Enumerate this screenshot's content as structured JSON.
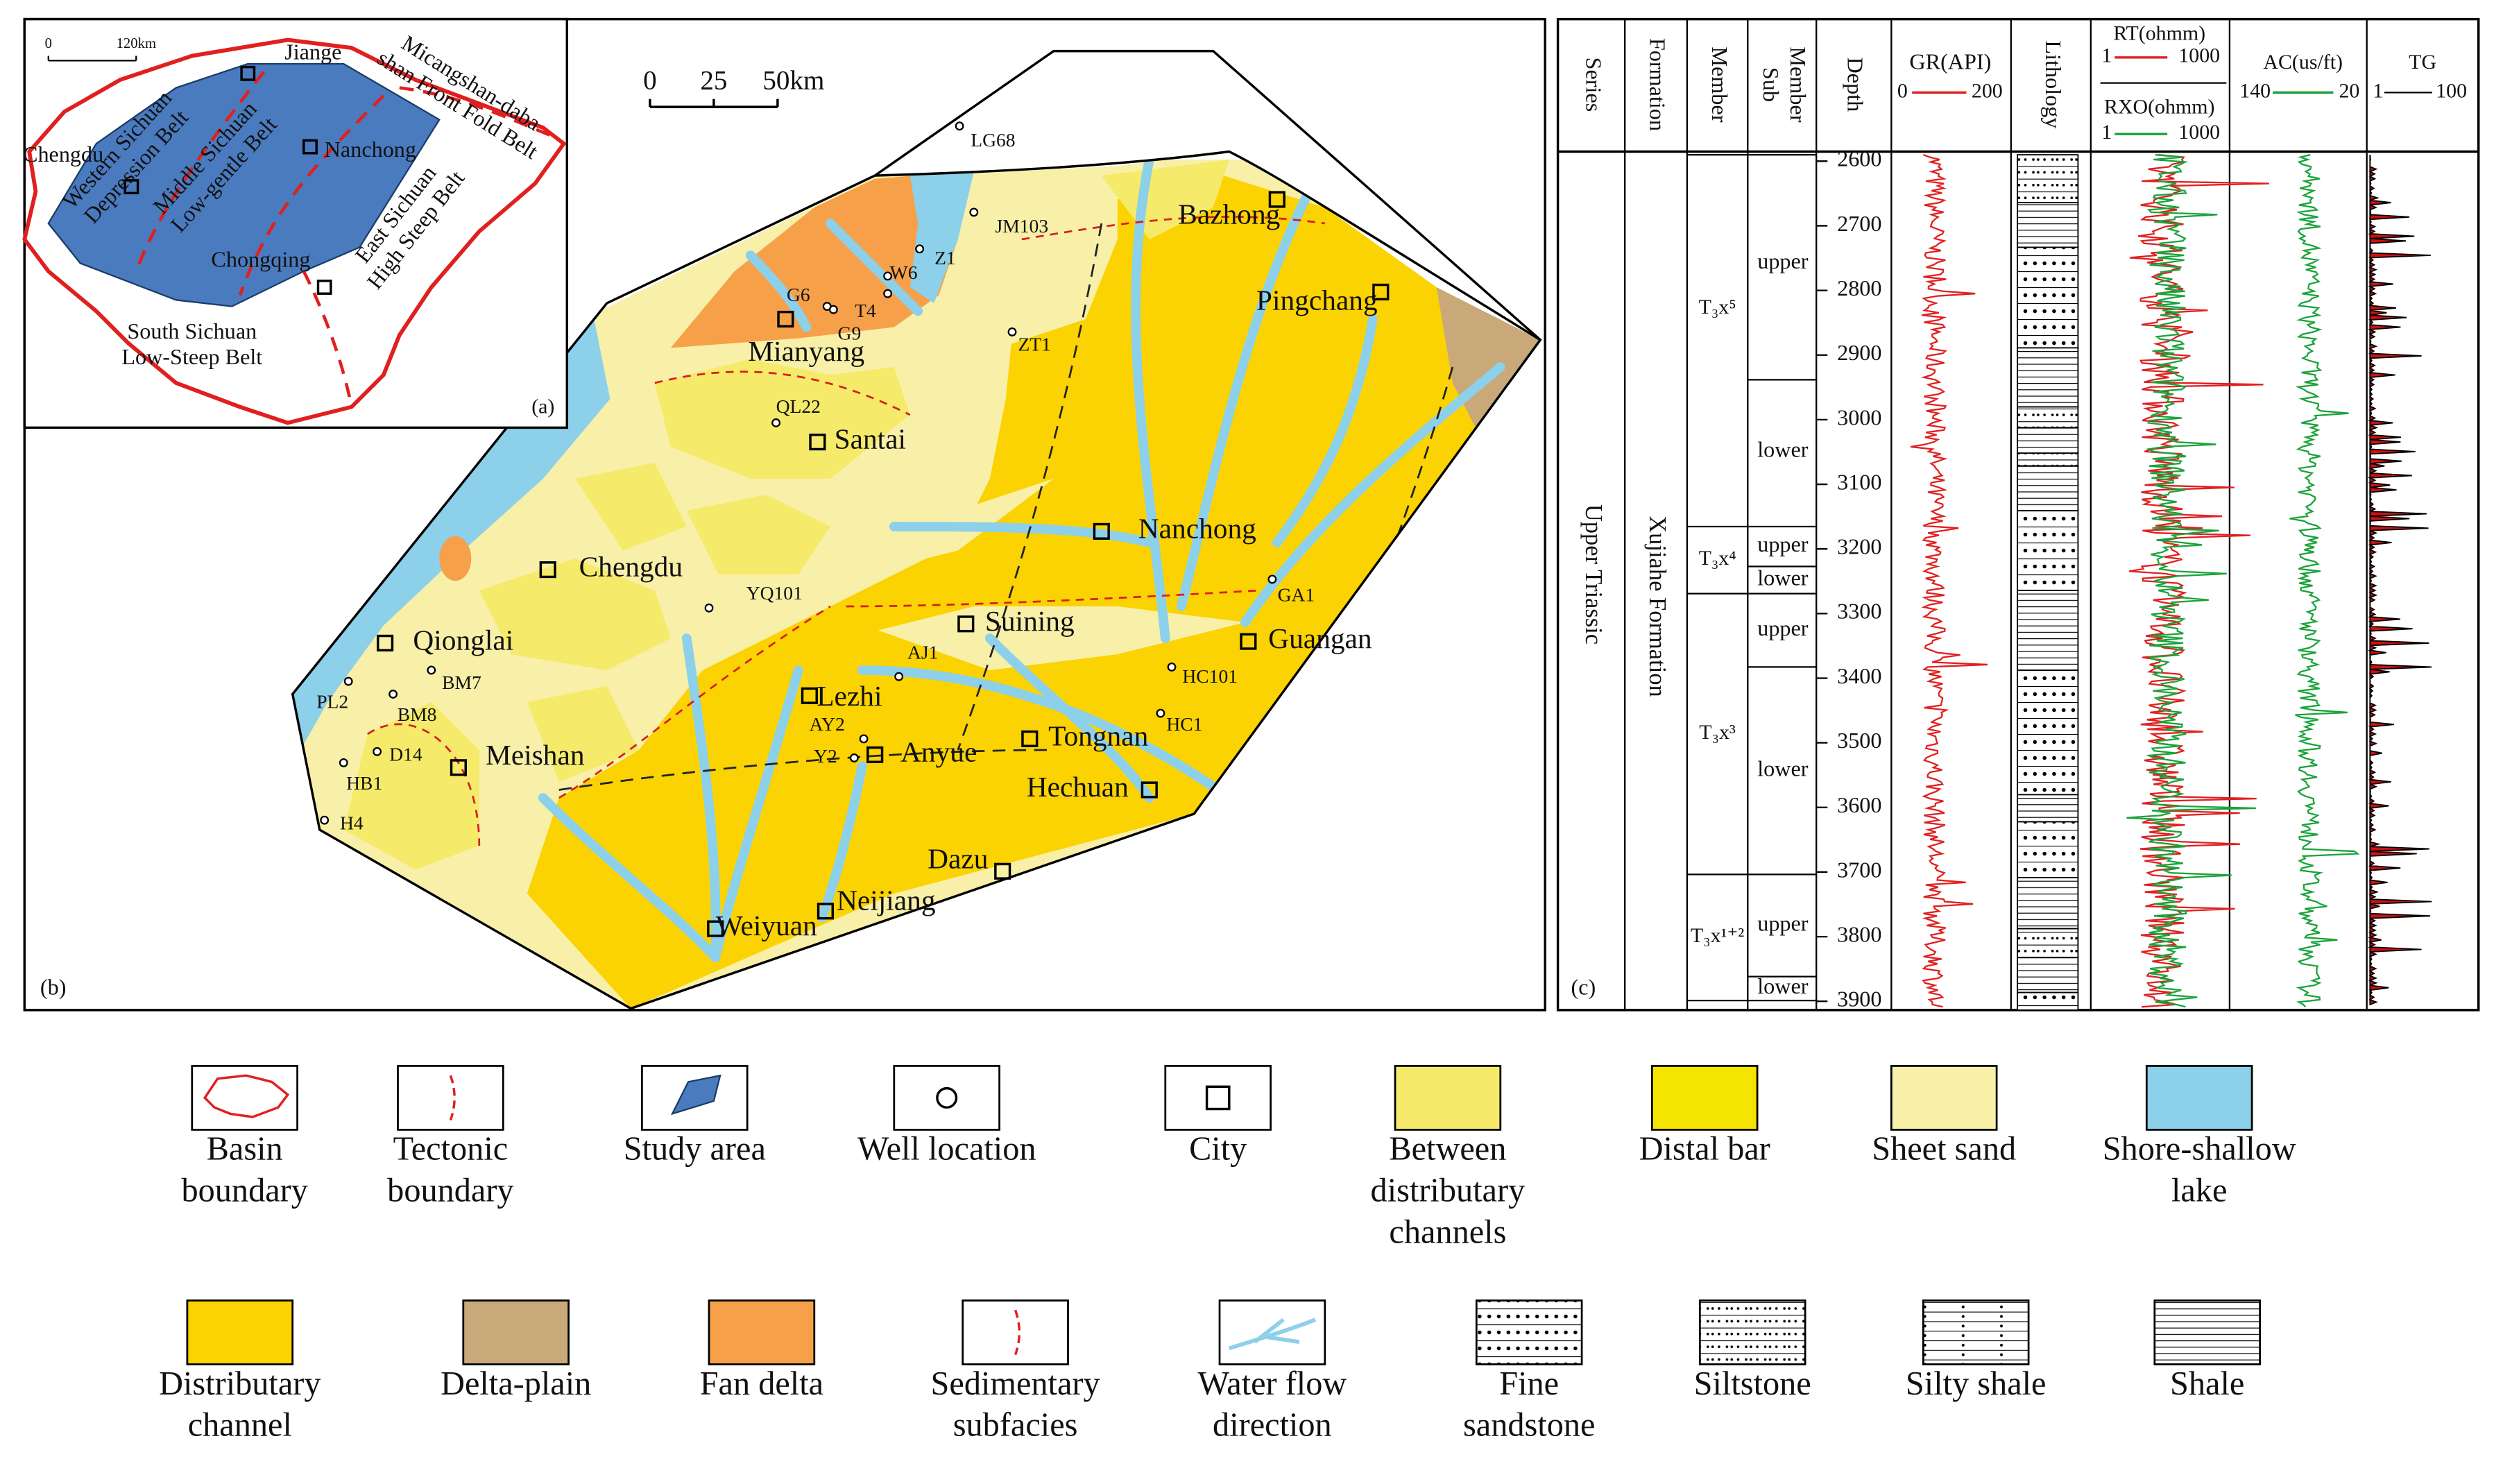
{
  "panel_a": {
    "label": "(a)",
    "scale": [
      "0",
      "120km"
    ],
    "cities": [
      "Jiange",
      "Chengdu",
      "Nanchong",
      "Chongqing"
    ],
    "belts": [
      [
        "Western Sichuan",
        "Depression Belt"
      ],
      [
        "Middle Sichuan",
        "Low-gentle Belt"
      ],
      [
        "Micangshan-daba",
        "shan Front Fold Belt"
      ],
      [
        "East Sichuan",
        "High Steep Belt"
      ],
      [
        "South Sichuan",
        "Low-Steep Belt"
      ]
    ]
  },
  "panel_b": {
    "label": "(b)",
    "scale": [
      "0",
      "25",
      "50km"
    ],
    "cities": [
      "Bazhong",
      "Pingchang",
      "Mianyang",
      "Santai",
      "Nanchong",
      "Chengdu",
      "Qionglai",
      "Suining",
      "Guangan",
      "Lezhi",
      "Anyue",
      "Tongnan",
      "Hechuan",
      "Meishan",
      "Dazu",
      "Weiyuan",
      "Neijiang"
    ],
    "wells": [
      "LG68",
      "JM103",
      "Z1",
      "W6",
      "T4",
      "G6",
      "G9",
      "ZT1",
      "QL22",
      "YQ101",
      "AJ1",
      "AY2",
      "Y2",
      "GA1",
      "HC101",
      "HC1",
      "PL2",
      "BM7",
      "BM8",
      "D14",
      "HB1",
      "H4"
    ]
  },
  "panel_c": {
    "label": "(c)",
    "headers": {
      "series": "Series",
      "formation": "Formation",
      "member": "Member",
      "sub_member": [
        "Sub",
        "Member"
      ],
      "depth": "Depth",
      "gr": "GR(API)",
      "gr_range": [
        "0",
        "200"
      ],
      "lithology": "Lithology",
      "rt": "RT(ohmm)",
      "rt_range": [
        "1",
        "1000"
      ],
      "rxo": "RXO(ohmm)",
      "rxo_range": [
        "1",
        "1000"
      ],
      "ac": "AC(us/ft)",
      "ac_range": [
        "140",
        "20"
      ],
      "tg": "TG",
      "tg_range": [
        "1",
        "100"
      ]
    },
    "series": "Upper Triassic",
    "formation": "Xujiahe Formation",
    "depths": [
      2600,
      2700,
      2800,
      2900,
      3000,
      3100,
      3200,
      3300,
      3400,
      3500,
      3600,
      3700,
      3800,
      3900
    ],
    "members": [
      {
        "name": "T₃x⁵",
        "sub": [
          "upper",
          "lower"
        ]
      },
      {
        "name": "T₃x⁴",
        "sub": [
          "upper",
          "lower"
        ]
      },
      {
        "name": "T₃x³",
        "sub": [
          "upper",
          "lower"
        ]
      },
      {
        "name": "T₃x¹⁺²",
        "sub": [
          "upper",
          "lower"
        ]
      }
    ]
  },
  "legend": [
    {
      "label": [
        "Basin",
        "boundary"
      ]
    },
    {
      "label": [
        "Tectonic",
        "boundary"
      ]
    },
    {
      "label": [
        "Study area"
      ]
    },
    {
      "label": [
        "Well location"
      ]
    },
    {
      "label": [
        "City"
      ]
    },
    {
      "label": [
        "Between",
        "distributary",
        "channels"
      ]
    },
    {
      "label": [
        "Distal bar"
      ]
    },
    {
      "label": [
        "Sheet sand"
      ]
    },
    {
      "label": [
        "Shore-shallow",
        "lake"
      ]
    },
    {
      "label": [
        "Distributary",
        "channel"
      ]
    },
    {
      "label": [
        "Delta-plain"
      ]
    },
    {
      "label": [
        "Fan delta"
      ]
    },
    {
      "label": [
        "Sedimentary",
        "subfacies"
      ]
    },
    {
      "label": [
        "Water flow",
        "direction"
      ]
    },
    {
      "label": [
        "Fine",
        "sandstone"
      ]
    },
    {
      "label": [
        "Siltstone"
      ]
    },
    {
      "label": [
        "Silty shale"
      ]
    },
    {
      "label": [
        "Shale"
      ]
    }
  ]
}
